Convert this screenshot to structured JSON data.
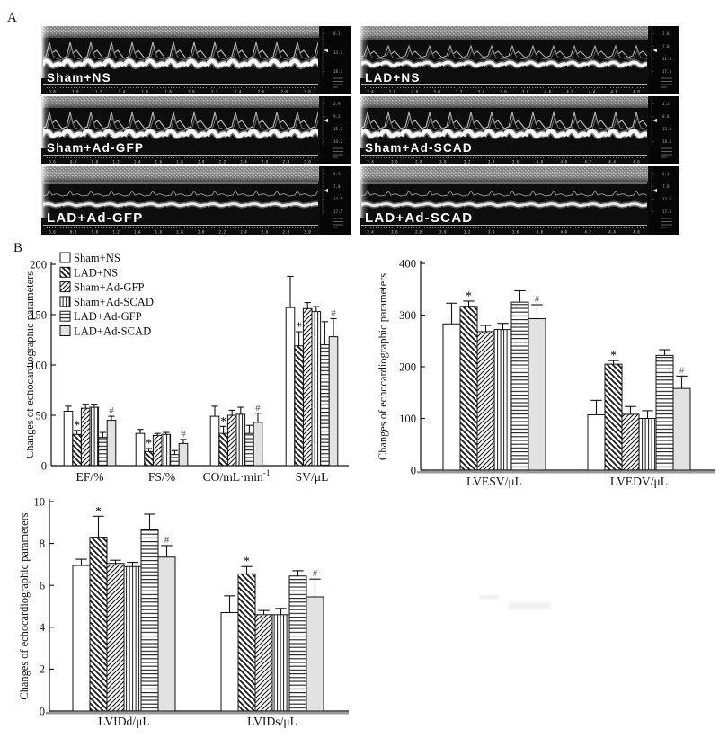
{
  "figure": {
    "panel_a_label": "A",
    "panel_b_label": "B"
  },
  "echo_panels": [
    {
      "label": "Sham+NS",
      "type": "strong",
      "col": 0,
      "row": 0,
      "ruler": [
        "0.8",
        "1.0",
        "1.2",
        "1.4",
        "1.6",
        "1.8",
        "2.0",
        "2.2",
        "2.4",
        "2.6",
        "2.8",
        "3.0"
      ],
      "side": [
        "8.1",
        "13.1",
        "18.1"
      ]
    },
    {
      "label": "LAD+NS",
      "type": "mid",
      "col": 1,
      "row": 0,
      "ruler": [
        "2.4",
        "2.6",
        "2.8",
        "3.0",
        "3.2",
        "3.4",
        "3.6",
        "3.8",
        "4.0",
        "4.2",
        "4.4",
        "4.6",
        "4.8"
      ],
      "side": [
        "2.0",
        "7.0",
        "12.0",
        "17.0"
      ]
    },
    {
      "label": "Sham+Ad-GFP",
      "type": "strong",
      "col": 0,
      "row": 1,
      "ruler": [
        "0.6",
        "0.8",
        "1.0",
        "1.2",
        "1.4",
        "1.6",
        "1.8",
        "2.0",
        "2.2",
        "2.4",
        "2.6",
        "2.8",
        "3.0"
      ],
      "side": [
        "3.9",
        "9.2",
        "15.2",
        "19.2"
      ]
    },
    {
      "label": "Sham+Ad-SCAD",
      "type": "strong",
      "col": 1,
      "row": 1,
      "ruler": [
        "2.4",
        "2.6",
        "2.8",
        "3.0",
        "3.2",
        "3.4",
        "3.6",
        "3.8",
        "4.0",
        "4.2",
        "4.4",
        "4.6"
      ],
      "side": [
        "3.2",
        "8.8",
        "13.8",
        "18.8"
      ]
    },
    {
      "label": "LAD+Ad-GFP",
      "type": "flat",
      "col": 0,
      "row": 2,
      "ruler": [
        "0.6",
        "0.8",
        "1.0",
        "1.2",
        "1.4",
        "1.6",
        "1.8",
        "2.0",
        "2.2",
        "2.4",
        "2.6",
        "2.8",
        "3.0"
      ],
      "side": [
        "2.1",
        "7.0",
        "12.5",
        "17.5"
      ]
    },
    {
      "label": "LAD+Ad-SCAD",
      "type": "flat",
      "col": 1,
      "row": 2,
      "ruler": [
        "2.4",
        "2.6",
        "2.8",
        "3.0",
        "3.2",
        "3.4",
        "3.6",
        "3.8",
        "4.0",
        "4.2",
        "4.4",
        "4.6"
      ],
      "side": [
        "2.1",
        "7.0",
        "12.0",
        "17.0"
      ]
    }
  ],
  "legend_patterns": [
    "white",
    "diagB",
    "diagF",
    "vert",
    "horiz",
    "gray"
  ],
  "annotations": {
    "star": "*",
    "hash": "#"
  },
  "chart_data": [
    {
      "type": "bar",
      "id": "params",
      "ylabel": "Changes of echocardiographic parameters",
      "ylim": [
        0,
        200
      ],
      "yticks": [
        0,
        50,
        100,
        150,
        200
      ],
      "legend_visible": true,
      "legend_position": "top-left",
      "categories": [
        {
          "text": "EF/%"
        },
        {
          "text": "FS/%"
        },
        {
          "text": "CO/mL·min",
          "sup": "-1"
        },
        {
          "text": "SV/μL"
        }
      ],
      "series": [
        {
          "name": "Sham+NS",
          "pattern": "white",
          "values": [
            54,
            32,
            49,
            157
          ],
          "errors": [
            5,
            4,
            10,
            31
          ]
        },
        {
          "name": "LAD+NS",
          "pattern": "diagB",
          "values": [
            31,
            14,
            32,
            119
          ],
          "errors": [
            4,
            3,
            7,
            14
          ],
          "mark": "*"
        },
        {
          "name": "Sham+Ad-GFP",
          "pattern": "diagF",
          "values": [
            57,
            30,
            50,
            156
          ],
          "errors": [
            4,
            2,
            5,
            6
          ]
        },
        {
          "name": "Sham+Ad-SCAD",
          "pattern": "vert",
          "values": [
            58,
            31,
            51,
            153
          ],
          "errors": [
            3,
            2,
            7,
            5
          ]
        },
        {
          "name": "LAD+Ad-GFP",
          "pattern": "horiz",
          "values": [
            28,
            11,
            32,
            120
          ],
          "errors": [
            5,
            4,
            8,
            23
          ]
        },
        {
          "name": "LAD+Ad-SCAD",
          "pattern": "gray",
          "values": [
            45,
            22,
            43,
            128
          ],
          "errors": [
            4,
            4,
            9,
            18
          ],
          "mark": "#"
        }
      ]
    },
    {
      "type": "bar",
      "id": "volumes",
      "ylabel": "Changes of echocardiographic parameters",
      "ylim": [
        0,
        400
      ],
      "yticks": [
        0,
        100,
        200,
        300,
        400
      ],
      "legend_visible": false,
      "categories": [
        {
          "text": "LVESV/μL"
        },
        {
          "text": "LVEDV/μL"
        }
      ],
      "series": [
        {
          "name": "Sham+NS",
          "pattern": "white",
          "values": [
            283,
            107
          ],
          "errors": [
            40,
            28
          ]
        },
        {
          "name": "LAD+NS",
          "pattern": "diagB",
          "values": [
            317,
            205
          ],
          "errors": [
            10,
            7
          ],
          "mark": "*"
        },
        {
          "name": "Sham+Ad-GFP",
          "pattern": "diagF",
          "values": [
            268,
            108
          ],
          "errors": [
            12,
            15
          ]
        },
        {
          "name": "Sham+Ad-SCAD",
          "pattern": "vert",
          "values": [
            272,
            100
          ],
          "errors": [
            12,
            15
          ]
        },
        {
          "name": "LAD+Ad-GFP",
          "pattern": "horiz",
          "values": [
            325,
            222
          ],
          "errors": [
            22,
            11
          ]
        },
        {
          "name": "LAD+Ad-SCAD",
          "pattern": "gray",
          "values": [
            293,
            158
          ],
          "errors": [
            27,
            24
          ],
          "mark": "#"
        }
      ]
    },
    {
      "type": "bar",
      "id": "lvid",
      "ylabel": "Changes of echocardiographic parameters",
      "ylim": [
        0,
        10
      ],
      "yticks": [
        0,
        2,
        4,
        6,
        8,
        10
      ],
      "legend_visible": false,
      "categories": [
        {
          "text": "LVIDd/μL"
        },
        {
          "text": "LVIDs/μL"
        }
      ],
      "series": [
        {
          "name": "Sham+NS",
          "pattern": "white",
          "values": [
            6.95,
            4.7
          ],
          "errors": [
            0.3,
            0.8
          ]
        },
        {
          "name": "LAD+NS",
          "pattern": "diagB",
          "values": [
            8.3,
            6.55
          ],
          "errors": [
            1.0,
            0.35
          ],
          "mark": "*"
        },
        {
          "name": "Sham+Ad-GFP",
          "pattern": "diagF",
          "values": [
            7.05,
            4.6
          ],
          "errors": [
            0.15,
            0.2
          ]
        },
        {
          "name": "Sham+Ad-SCAD",
          "pattern": "vert",
          "values": [
            6.9,
            4.6
          ],
          "errors": [
            0.2,
            0.3
          ]
        },
        {
          "name": "LAD+Ad-GFP",
          "pattern": "horiz",
          "values": [
            8.65,
            6.45
          ],
          "errors": [
            0.75,
            0.25
          ]
        },
        {
          "name": "LAD+Ad-SCAD",
          "pattern": "gray",
          "values": [
            7.35,
            5.45
          ],
          "errors": [
            0.55,
            0.85
          ],
          "mark": "#"
        }
      ]
    }
  ]
}
